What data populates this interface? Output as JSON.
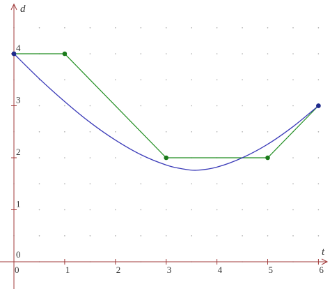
{
  "chart_data": {
    "type": "line",
    "xlabel": "t",
    "ylabel": "d",
    "xlim": [
      0,
      6
    ],
    "ylim": [
      0,
      4
    ],
    "x_ticks": [
      "0",
      "1",
      "2",
      "3",
      "4",
      "5",
      "6"
    ],
    "y_ticks": [
      "1",
      "2",
      "3",
      "4"
    ],
    "grid": "dotted",
    "series": [
      {
        "kind": "piecewise-linear",
        "color": "#1e8c1e",
        "points": [
          [
            0,
            4
          ],
          [
            1,
            4
          ],
          [
            3,
            2
          ],
          [
            5,
            2
          ],
          [
            6,
            3
          ]
        ]
      },
      {
        "kind": "smooth-curve",
        "color": "#3a3ab8",
        "points": [
          [
            0,
            4
          ],
          [
            0.5,
            3.52
          ],
          [
            1,
            3.08
          ],
          [
            1.5,
            2.68
          ],
          [
            2,
            2.34
          ],
          [
            2.5,
            2.06
          ],
          [
            3,
            1.86
          ],
          [
            3.3,
            1.79
          ],
          [
            3.6,
            1.76
          ],
          [
            4,
            1.82
          ],
          [
            4.5,
            2.0
          ],
          [
            5,
            2.26
          ],
          [
            5.5,
            2.6
          ],
          [
            6,
            3
          ]
        ],
        "endpoint_markers": [
          [
            0,
            4
          ],
          [
            6,
            3
          ]
        ]
      }
    ],
    "marker_colors": {
      "green": "#1a7a1a",
      "blue": "#1e2a8c"
    },
    "axis_color": "#a03a3a"
  }
}
